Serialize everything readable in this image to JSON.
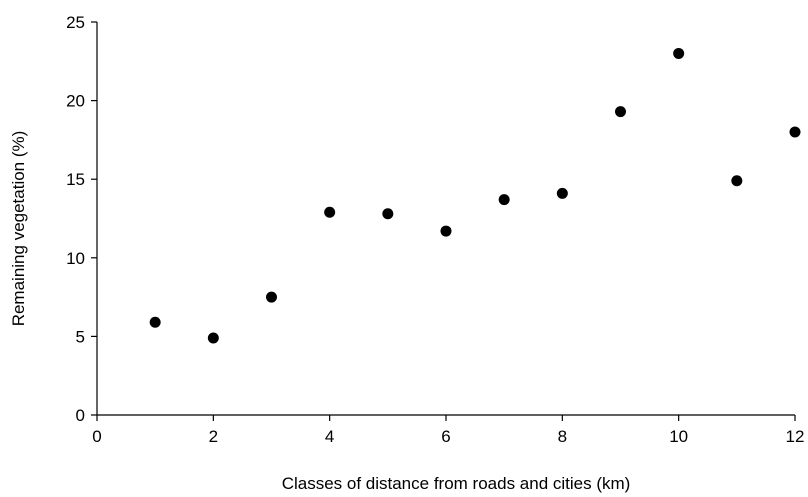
{
  "chart_data": {
    "type": "scatter",
    "title": "",
    "xlabel": "Classes of distance from roads and cities (km)",
    "ylabel": "Remaining vegetation (%)",
    "xlim": [
      0,
      12
    ],
    "ylim": [
      0,
      25
    ],
    "xticks": [
      0,
      2,
      4,
      6,
      8,
      10,
      12
    ],
    "yticks": [
      0,
      5,
      10,
      15,
      20,
      25
    ],
    "grid": false,
    "legend": "none",
    "marker_color": "#000000",
    "points": [
      {
        "x": 1,
        "y": 5.9
      },
      {
        "x": 2,
        "y": 4.9
      },
      {
        "x": 3,
        "y": 7.5
      },
      {
        "x": 4,
        "y": 12.9
      },
      {
        "x": 5,
        "y": 12.8
      },
      {
        "x": 6,
        "y": 11.7
      },
      {
        "x": 7,
        "y": 13.7
      },
      {
        "x": 8,
        "y": 14.1
      },
      {
        "x": 9,
        "y": 19.3
      },
      {
        "x": 10,
        "y": 23.0
      },
      {
        "x": 11,
        "y": 14.9
      },
      {
        "x": 12,
        "y": 18.0
      }
    ]
  }
}
